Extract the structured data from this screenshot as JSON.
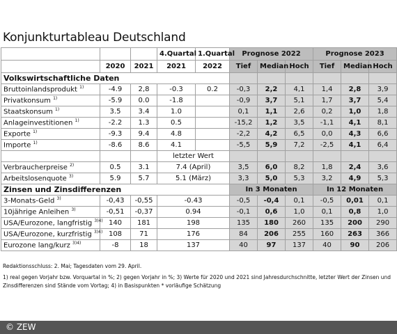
{
  "title": "Konjunkturtableau Deutschland",
  "table": {
    "header": {
      "groups": [
        "4.Quartal",
        "1.Quartal",
        "Prognose 2022",
        "Prognose 2023"
      ],
      "columns": [
        "2020",
        "2021",
        "2021",
        "2022",
        "Tief",
        "Median",
        "Hoch",
        "Tief",
        "Median",
        "Hoch"
      ]
    },
    "sections": [
      {
        "title": "Volkswirtschaftliche Daten",
        "rows": [
          {
            "label": "Bruttoinlandsprodukt",
            "note": "1)",
            "values": [
              "-4.9",
              "2,8",
              "-0.3",
              "0.2",
              "-0,3",
              "2,2",
              "4,1",
              "1,4",
              "2,8",
              "3,9"
            ]
          },
          {
            "label": "Privatkonsum",
            "note": "1)",
            "values": [
              "-5.9",
              "0.0",
              "-1.8",
              null,
              "-0,9",
              "3,7",
              "5,1",
              "1,7",
              "3,7",
              "5,4"
            ]
          },
          {
            "label": "Staatskonsum",
            "note": "1)",
            "values": [
              "3.5",
              "3.4",
              "1.0",
              null,
              "0,1",
              "1,1",
              "2,6",
              "0,2",
              "1,0",
              "1,8"
            ]
          },
          {
            "label": "Anlageinvestitionen",
            "note": "1)",
            "values": [
              "-2.2",
              "1.3",
              "0.5",
              null,
              "-15,2",
              "1,2",
              "3,5",
              "-1,1",
              "4,1",
              "8,1"
            ]
          },
          {
            "label": "Exporte",
            "note": "1)",
            "values": [
              "-9.3",
              "9.4",
              "4.8",
              null,
              "-2,2",
              "4,2",
              "6,5",
              "0,0",
              "4,3",
              "6,6"
            ]
          },
          {
            "label": "Importe",
            "note": "1)",
            "values": [
              "-8.6",
              "8.6",
              "4.1",
              null,
              "-5,5",
              "5,9",
              "7,2",
              "-2,5",
              "4,1",
              "6,4"
            ]
          }
        ]
      },
      {
        "subheader": "letzter Wert",
        "rows": [
          {
            "label": "Verbraucherpreise",
            "note": "2)",
            "values": [
              "0.5",
              "3.1",
              "7.4 (April)",
              "3,5",
              "6,0",
              "8,2",
              "1,8",
              "2,4",
              "3,6"
            ]
          },
          {
            "label": "Arbeitslosenquote",
            "note": "3)",
            "values": [
              "5.9",
              "5.7",
              "5.1 (März)",
              "3,3",
              "5,0",
              "5,3",
              "3,2",
              "4,9",
              "5,3"
            ]
          }
        ]
      },
      {
        "title": "Zinsen und Zinsdifferenzen",
        "horizons": [
          "In 3 Monaten",
          "In 12 Monaten"
        ],
        "rows": [
          {
            "label": "3-Monats-Geld",
            "note": "3)",
            "values": [
              "-0,43",
              "-0,55",
              "-0.43",
              "-0,5",
              "-0,4",
              "0,1",
              "-0,5",
              "0,01",
              "0,1"
            ]
          },
          {
            "label": "10jährige Anleihen",
            "note": "3)",
            "values": [
              "-0,51",
              "-0,37",
              "0.94",
              "-0,1",
              "0,6",
              "1,0",
              "0,1",
              "0,8",
              "1,0"
            ]
          },
          {
            "label": "USA/Eurozone, langfristig",
            "note": "3)4)",
            "values": [
              "140",
              "181",
              "198",
              "135",
              "180",
              "260",
              "135",
              "200",
              "290"
            ]
          },
          {
            "label": "USA/Eurozone, kurzfristig",
            "note": "3)4)",
            "values": [
              "108",
              "71",
              "176",
              "84",
              "206",
              "255",
              "160",
              "263",
              "366"
            ]
          },
          {
            "label": "Eurozone lang/kurz",
            "note": "3)4)",
            "values": [
              "-8",
              "18",
              "137",
              "40",
              "97",
              "137",
              "40",
              "90",
              "206"
            ]
          }
        ]
      }
    ]
  },
  "footer": {
    "deadline": "Redaktionsschluss: 2. Mai; Tagesdaten vom 29. April.",
    "notes": "1) real gegen Vorjahr bzw. Vorquartal in %; 2) gegen Vorjahr in %; 3) Werte für 2020 und 2021 sind Jahresdurchschnitte, letzter Wert der Zinsen und Zinsdifferenzen sind Stände vom Vortag; 4) in Basispunkten * vorläufige Schätzung",
    "copyright": "© ZEW"
  }
}
